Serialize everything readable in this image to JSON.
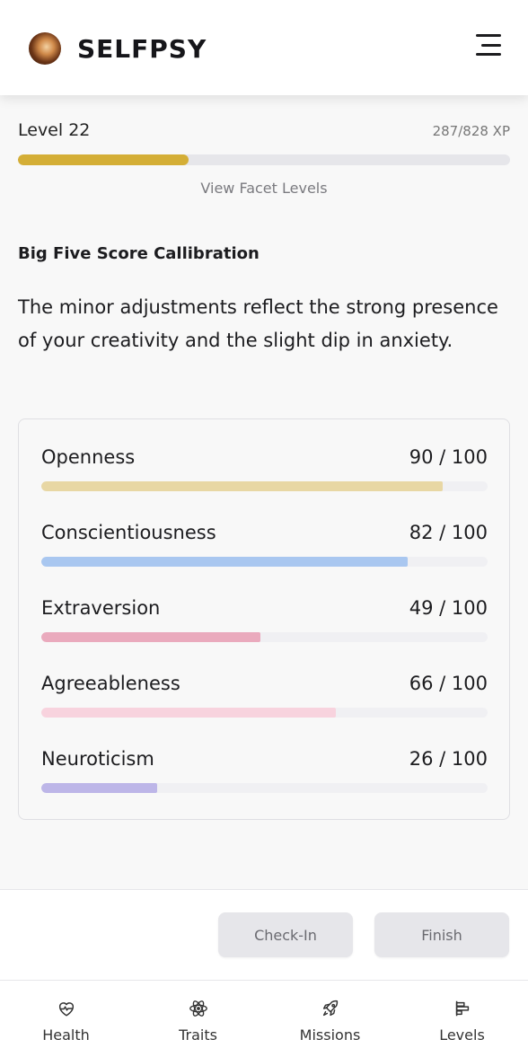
{
  "header": {
    "brand": "SELFPSY"
  },
  "level": {
    "label": "Level 22",
    "xp_text": "287/828 XP",
    "xp_fraction": 0.3466,
    "xp_color": "#d4ae36",
    "facet_link": "View Facet Levels"
  },
  "calibration": {
    "title": "Big Five Score Callibration",
    "text": "The minor adjustments reflect the strong presence of your creativity and the slight dip in anxiety."
  },
  "traits": [
    {
      "name": "Openness",
      "score_text": "90 / 100",
      "value": 90,
      "color": "#e8d7a4"
    },
    {
      "name": "Conscientiousness",
      "score_text": "82 / 100",
      "value": 82,
      "color": "#a9c7f0"
    },
    {
      "name": "Extraversion",
      "score_text": "49 / 100",
      "value": 49,
      "color": "#eaaabd"
    },
    {
      "name": "Agreeableness",
      "score_text": "66 / 100",
      "value": 66,
      "color": "#f8d3de"
    },
    {
      "name": "Neuroticism",
      "score_text": "26 / 100",
      "value": 26,
      "color": "#bdb6e8"
    }
  ],
  "actions": {
    "checkin": "Check-In",
    "finish": "Finish"
  },
  "nav": [
    {
      "label": "Health",
      "icon": "heart-pulse-icon"
    },
    {
      "label": "Traits",
      "icon": "atom-icon"
    },
    {
      "label": "Missions",
      "icon": "rocket-icon"
    },
    {
      "label": "Levels",
      "icon": "levels-chart-icon"
    }
  ]
}
